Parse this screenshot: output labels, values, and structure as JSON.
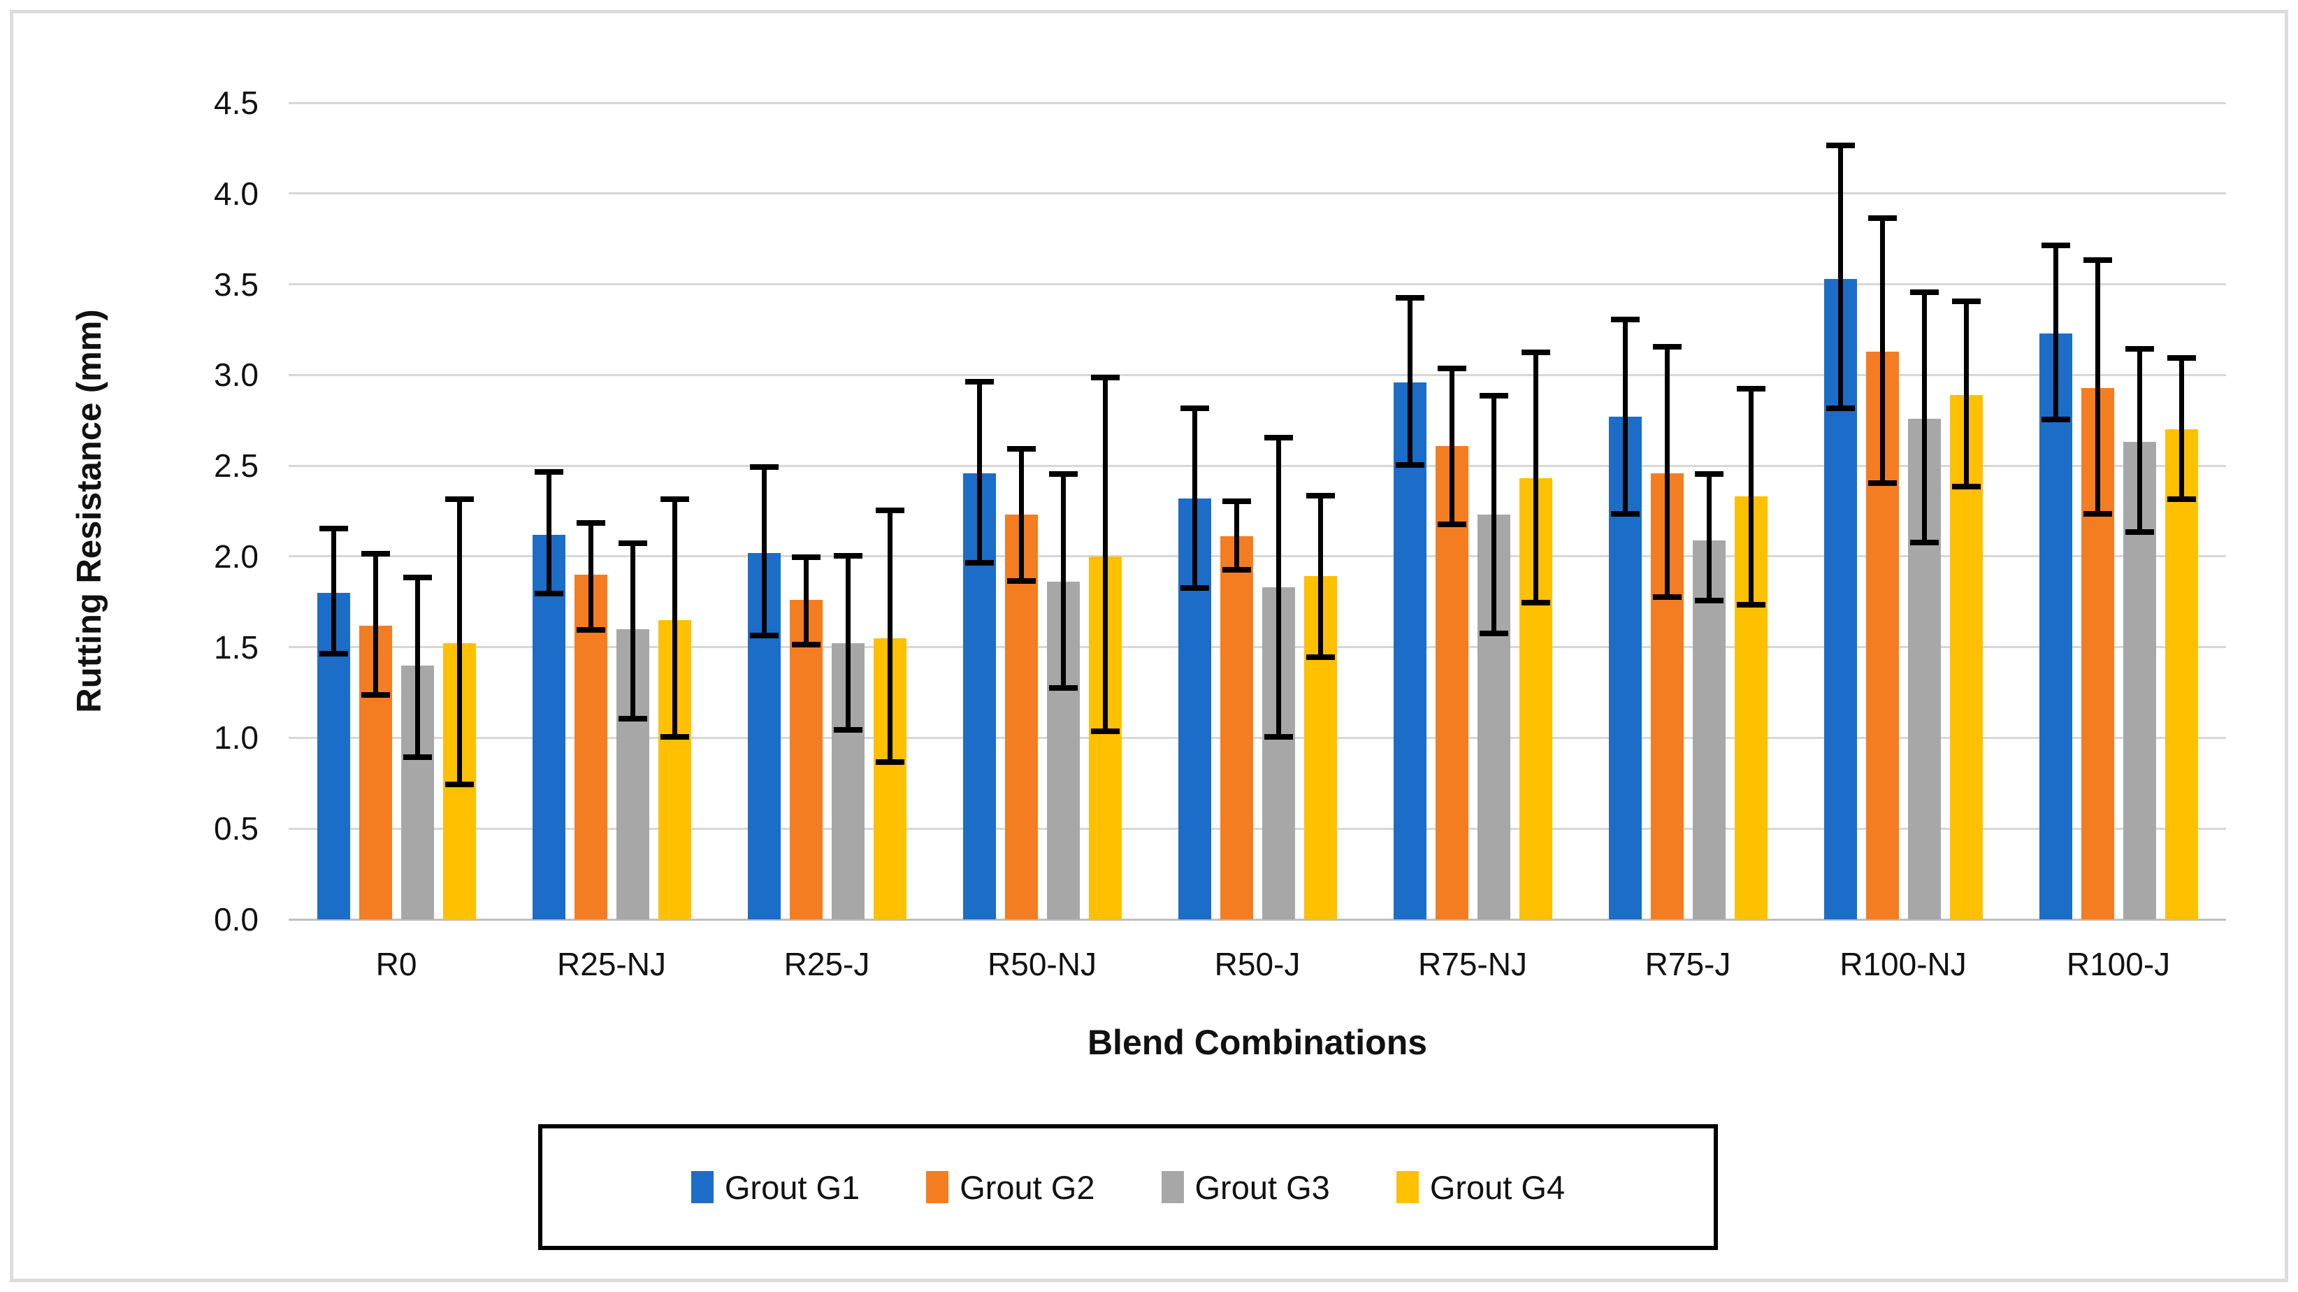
{
  "figure": {
    "y_axis_title": "Rutting Resistance (mm)",
    "x_axis_title": "Blend Combinations",
    "y_tick_labels": [
      "0.0",
      "0.5",
      "1.0",
      "1.5",
      "2.0",
      "2.5",
      "3.0",
      "3.5",
      "4.0",
      "4.5"
    ],
    "colors": {
      "gridline": "#d7d7d7",
      "baseline": "#bfbfbf",
      "error_bar": "#000000",
      "text": "#111111",
      "frame_border": "#dcdcdc",
      "legend_border": "#000000",
      "background": "#ffffff"
    }
  },
  "chart_data": {
    "type": "bar",
    "title": "",
    "xlabel": "Blend Combinations",
    "ylabel": "Rutting Resistance (mm)",
    "ylim": [
      0,
      4.5
    ],
    "y_tick_step": 0.5,
    "grid": "horizontal",
    "legend_position": "bottom",
    "error_bars": true,
    "categories": [
      "R0",
      "R25-NJ",
      "R25-J",
      "R50-NJ",
      "R50-J",
      "R75-NJ",
      "R75-J",
      "R100-NJ",
      "R100-J"
    ],
    "series": [
      {
        "name": "Grout G1",
        "color": "#1c6dc8",
        "values": [
          1.8,
          2.12,
          2.02,
          2.46,
          2.32,
          2.96,
          2.77,
          3.53,
          3.23
        ],
        "error_low": [
          1.45,
          1.78,
          1.55,
          1.95,
          1.81,
          2.49,
          2.22,
          2.8,
          2.74
        ],
        "error_high": [
          2.17,
          2.48,
          2.51,
          2.98,
          2.83,
          3.44,
          3.32,
          4.28,
          3.73
        ]
      },
      {
        "name": "Grout G2",
        "color": "#f47d22",
        "values": [
          1.62,
          1.9,
          1.76,
          2.23,
          2.11,
          2.61,
          2.46,
          3.13,
          2.93
        ],
        "error_low": [
          1.22,
          1.58,
          1.5,
          1.85,
          1.91,
          2.16,
          1.76,
          2.39,
          2.22
        ],
        "error_high": [
          2.03,
          2.2,
          2.01,
          2.61,
          2.32,
          3.05,
          3.17,
          3.88,
          3.65
        ]
      },
      {
        "name": "Grout G3",
        "color": "#a7a7a7",
        "values": [
          1.4,
          1.6,
          1.52,
          1.86,
          1.83,
          2.23,
          2.09,
          2.76,
          2.63
        ],
        "error_low": [
          0.88,
          1.09,
          1.03,
          1.26,
          0.99,
          1.56,
          1.74,
          2.06,
          2.12
        ],
        "error_high": [
          1.9,
          2.09,
          2.02,
          2.47,
          2.67,
          2.9,
          2.47,
          3.47,
          3.16
        ]
      },
      {
        "name": "Grout G4",
        "color": "#ffc000",
        "values": [
          1.52,
          1.65,
          1.55,
          2.0,
          1.89,
          2.43,
          2.33,
          2.89,
          2.7
        ],
        "error_low": [
          0.73,
          0.99,
          0.85,
          1.02,
          1.43,
          1.73,
          1.72,
          2.37,
          2.3
        ],
        "error_high": [
          2.33,
          2.33,
          2.27,
          3.0,
          2.35,
          3.14,
          2.94,
          3.42,
          3.11
        ]
      }
    ]
  }
}
